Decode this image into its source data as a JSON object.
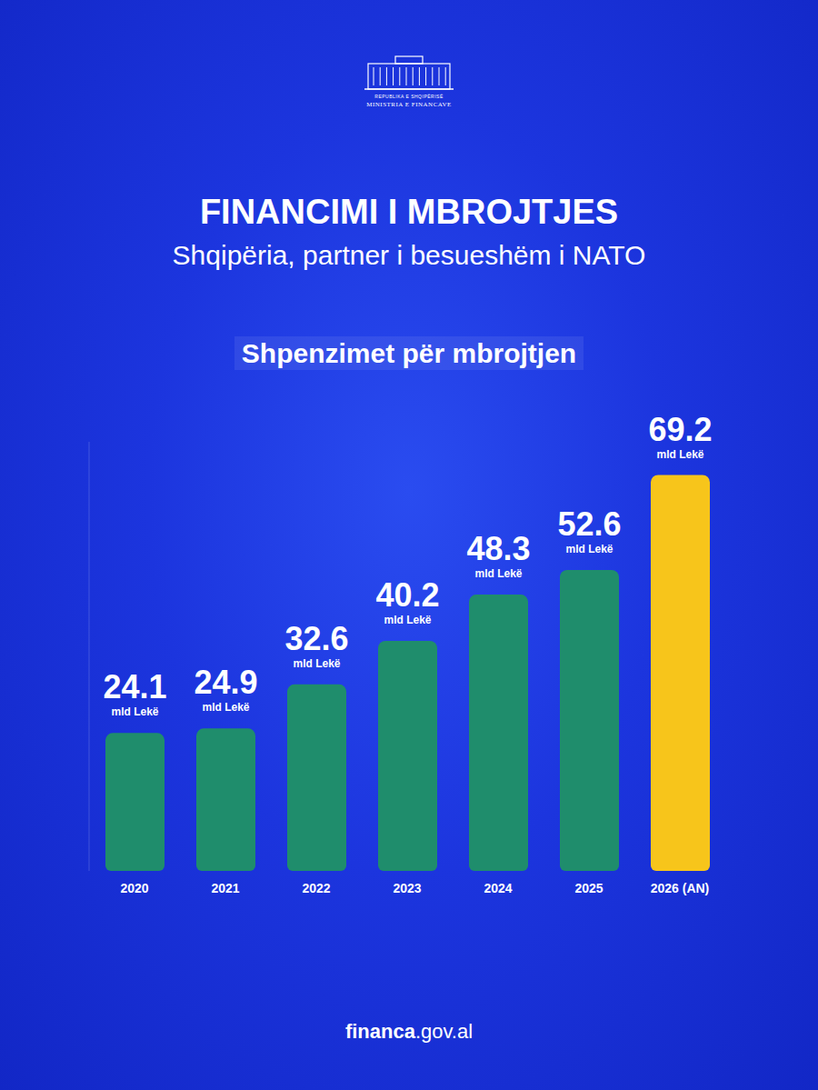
{
  "header": {
    "top_text": "REPUBLIKA E SHQIPËRISË",
    "ministry": "MINISTRIA E FINANCAVE",
    "title": "FINANCIMI I MBROJTJES",
    "subtitle": "Shqipëria, partner i besueshëm i NATO"
  },
  "chart_data": {
    "type": "bar",
    "title": "Shpenzimet për mbrojtjen",
    "categories": [
      "2020",
      "2021",
      "2022",
      "2023",
      "2024",
      "2025",
      "2026 (AN)"
    ],
    "values": [
      24.1,
      24.9,
      32.6,
      40.2,
      48.3,
      52.6,
      69.2
    ],
    "value_unit": "mld Lekë",
    "colors": [
      "#1f8d6c",
      "#1f8d6c",
      "#1f8d6c",
      "#1f8d6c",
      "#1f8d6c",
      "#1f8d6c",
      "#f7c51b"
    ],
    "ylim": [
      0,
      75
    ],
    "grid": false,
    "data_labels": true,
    "tick_labels": "x"
  },
  "footer": "financa.gov.al"
}
